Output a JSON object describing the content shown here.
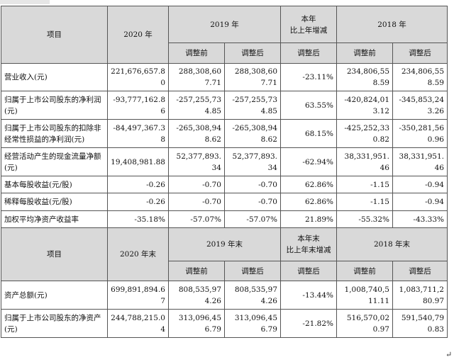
{
  "enter_mark": "↵",
  "section1": {
    "header": {
      "item": "项目",
      "y2020": "2020 年",
      "y2019": "2019 年",
      "change": "本年\n比上年增减",
      "y2018": "2018 年",
      "before": "调整前",
      "after": "调整后",
      "change_after": "调整后"
    },
    "rows": [
      {
        "label": "营业收入(元)",
        "v2020": "221,676,657.80",
        "v2019b": "288,308,607.71",
        "v2019a": "288,308,607.71",
        "chg": "-23.11%",
        "v2018b": "234,806,558.59",
        "v2018a": "234,806,558.59"
      },
      {
        "label": "归属于上市公司股东的净利润(元)",
        "v2020": "-93,777,162.86",
        "v2019b": "-257,255,734.85",
        "v2019a": "-257,255,734.85",
        "chg": "63.55%",
        "v2018b": "-420,824,013.12",
        "v2018a": "-345,853,243.26"
      },
      {
        "label": "归属于上市公司股东的扣除非经常性损益的净利润(元)",
        "v2020": "-84,497,367.38",
        "v2019b": "-265,308,948.62",
        "v2019a": "-265,308,948.62",
        "chg": "68.15%",
        "v2018b": "-425,252,330.82",
        "v2018a": "-350,281,560.96"
      },
      {
        "label": "经营活动产生的现金流量净额(元)",
        "v2020": "19,408,981.88",
        "v2019b": "52,377,893.34",
        "v2019a": "52,377,893.34",
        "chg": "-62.94%",
        "v2018b": "38,331,951.46",
        "v2018a": "38,331,951.46"
      },
      {
        "label": "基本每股收益(元/股)",
        "v2020": "-0.26",
        "v2019b": "-0.70",
        "v2019a": "-0.70",
        "chg": "62.86%",
        "v2018b": "-1.15",
        "v2018a": "-0.94"
      },
      {
        "label": "稀释每股收益(元/股)",
        "v2020": "-0.26",
        "v2019b": "-0.70",
        "v2019a": "-0.70",
        "chg": "62.86%",
        "v2018b": "-1.15",
        "v2018a": "-0.94"
      },
      {
        "label": "加权平均净资产收益率",
        "v2020": "-35.18%",
        "v2019b": "-57.07%",
        "v2019a": "-57.07%",
        "chg": "21.89%",
        "v2018b": "-55.32%",
        "v2018a": "-43.33%"
      }
    ]
  },
  "section2": {
    "header": {
      "item": "项目",
      "y2020": "2020 年末",
      "y2019": "2019 年末",
      "change": "本年末\n比上年末增减",
      "y2018": "2018 年末",
      "before": "调整前",
      "after": "调整后",
      "change_after": "调整后"
    },
    "rows": [
      {
        "label": "资产总额(元)",
        "v2020": "699,891,894.67",
        "v2019b": "808,535,974.26",
        "v2019a": "808,535,974.26",
        "chg": "-13.44%",
        "v2018b": "1,008,740,511.11",
        "v2018a": "1,083,711,280.97"
      },
      {
        "label": "归属于上市公司股东的净资产(元)",
        "v2020": "244,788,215.04",
        "v2019b": "313,096,456.79",
        "v2019a": "313,096,456.79",
        "chg": "-21.82%",
        "v2018b": "516,570,020.97",
        "v2018a": "591,540,790.83"
      }
    ]
  }
}
